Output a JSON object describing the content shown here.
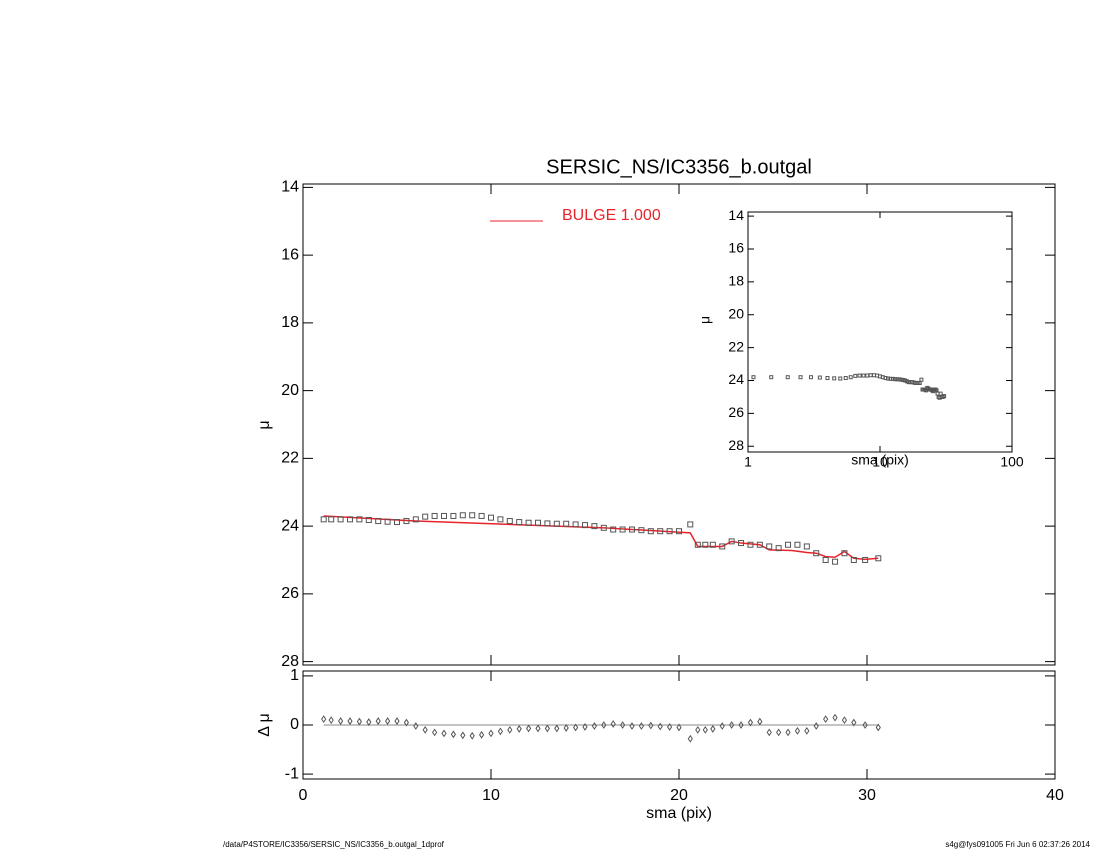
{
  "chart_data": [
    {
      "type": "scatter",
      "title": "SERSIC_NS/IC3356_b.outgal",
      "ylabel": "μ",
      "xlim": [
        0,
        40
      ],
      "xticks": [
        0,
        10,
        20,
        30,
        40
      ],
      "ylim": [
        13.9,
        28.1
      ],
      "yticks": [
        14,
        16,
        18,
        20,
        22,
        24,
        26,
        28
      ],
      "y_reversed": true,
      "points": {
        "color": "#555555",
        "x": [
          1.1,
          1.5,
          2,
          2.5,
          3,
          3.5,
          4,
          4.5,
          5,
          5.5,
          6,
          6.5,
          7,
          7.5,
          8,
          8.5,
          9,
          9.5,
          10,
          10.5,
          11,
          11.5,
          12,
          12.5,
          13,
          13.5,
          14,
          14.5,
          15,
          15.5,
          16,
          16.5,
          17,
          17.5,
          18,
          18.5,
          19,
          19.5,
          20,
          20.6,
          21,
          21.4,
          21.8,
          22.3,
          22.8,
          23.3,
          23.8,
          24.3,
          24.8,
          25.3,
          25.8,
          26.3,
          26.8,
          27.3,
          27.8,
          28.3,
          28.8,
          29.3,
          29.9,
          30.6
        ],
        "values": [
          23.8,
          23.8,
          23.8,
          23.8,
          23.8,
          23.82,
          23.85,
          23.87,
          23.88,
          23.85,
          23.8,
          23.72,
          23.7,
          23.7,
          23.7,
          23.68,
          23.68,
          23.7,
          23.75,
          23.8,
          23.85,
          23.88,
          23.9,
          23.9,
          23.92,
          23.93,
          23.93,
          23.95,
          23.97,
          24.0,
          24.05,
          24.1,
          24.1,
          24.1,
          24.12,
          24.15,
          24.15,
          24.15,
          24.15,
          23.95,
          24.55,
          24.55,
          24.55,
          24.6,
          24.45,
          24.5,
          24.55,
          24.55,
          24.6,
          24.65,
          24.55,
          24.55,
          24.6,
          24.8,
          25.0,
          25.05,
          24.8,
          25.0,
          25.0,
          24.95
        ]
      },
      "model": {
        "name": "BULGE  1.000",
        "color": "#e8242b",
        "x": [
          1.1,
          6,
          16,
          20.6,
          21,
          21.6,
          22.3,
          22.8,
          23.3,
          24.3,
          24.8,
          26,
          26.8,
          27.3,
          27.8,
          28.3,
          28.8,
          29.3,
          29.9,
          30.6
        ],
        "values": [
          23.7,
          23.85,
          24.05,
          24.2,
          24.6,
          24.6,
          24.6,
          24.45,
          24.5,
          24.55,
          24.7,
          24.72,
          24.78,
          24.8,
          24.9,
          24.92,
          24.75,
          24.95,
          24.98,
          24.95
        ]
      }
    },
    {
      "type": "scatter",
      "xlabel": "sma (pix)",
      "ylabel": "Δ μ",
      "xlim": [
        0,
        40
      ],
      "xticks": [
        0,
        10,
        20,
        30,
        40
      ],
      "ylim": [
        -1.1,
        1.1
      ],
      "yticks": [
        -1,
        0,
        1
      ],
      "values": [
        0.12,
        0.1,
        0.08,
        0.08,
        0.07,
        0.06,
        0.08,
        0.08,
        0.08,
        0.05,
        -0.02,
        -0.1,
        -0.15,
        -0.17,
        -0.19,
        -0.21,
        -0.22,
        -0.2,
        -0.17,
        -0.13,
        -0.1,
        -0.08,
        -0.07,
        -0.07,
        -0.07,
        -0.07,
        -0.06,
        -0.05,
        -0.04,
        -0.02,
        0.0,
        0.02,
        0.0,
        -0.02,
        -0.02,
        -0.01,
        -0.03,
        -0.04,
        -0.05,
        -0.28,
        -0.1,
        -0.1,
        -0.08,
        -0.02,
        0.0,
        0.0,
        0.05,
        0.07,
        -0.15,
        -0.15,
        -0.15,
        -0.12,
        -0.12,
        -0.02,
        0.12,
        0.15,
        0.1,
        0.05,
        0.0,
        -0.05
      ]
    },
    {
      "type": "scatter",
      "xlabel": "sma (pix)",
      "ylabel": "μ",
      "xlog": true,
      "xlim": [
        1,
        100
      ],
      "xticks": [
        1,
        10,
        100
      ],
      "ylim": [
        13.75,
        28.35
      ],
      "yticks": [
        14,
        16,
        18,
        20,
        22,
        24,
        26,
        28
      ],
      "y_reversed": true
    }
  ],
  "footer": {
    "left": "/data/P4STORE/IC3356/SERSIC_NS/IC3356_b.outgal_1dprof",
    "right": "s4g@fys091005  Fri Jun  6 02:37:26 2014"
  }
}
